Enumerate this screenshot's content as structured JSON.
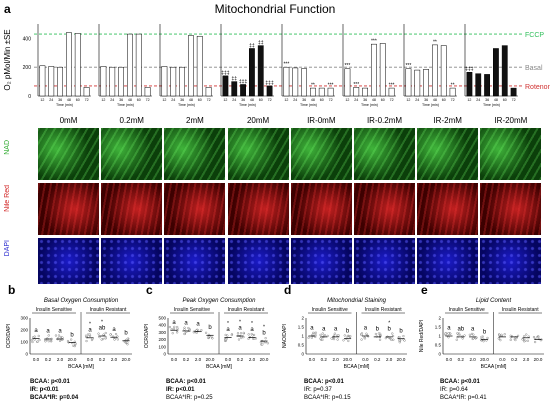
{
  "figure": {
    "panel_a": {
      "letter": "a",
      "title": "Mitochondrial Function"
    },
    "conditions": [
      "0mM",
      "0.2mM",
      "2mM",
      "20mM",
      "IR-0mM",
      "IR-0.2mM",
      "IR-2mM",
      "IR-20mM"
    ],
    "row_labels": [
      "NAD",
      "Nile Red",
      "DAPI"
    ],
    "line_labels": {
      "fccp": "FCCP",
      "basal": "Basal",
      "rotenone": "Rotenone"
    },
    "colors": {
      "fccp": "#2fbf5a",
      "basal": "#888888",
      "rotenone": "#d03030",
      "nad": "#2eaa2e",
      "nile_red": "#d02020",
      "dapi": "#2a2ad0"
    },
    "stats_b": [
      "BCAA: p<0.01",
      "IR: p<0.01",
      "BCAA*IR: p=0.04"
    ],
    "stats_c": [
      "BCAA: p<0.01",
      "IR: p<0.01",
      "BCAA*IR: p=0.25"
    ],
    "stats_d": [
      "BCAA: p<0.01",
      "IR: p=0.37",
      "BCAA*IR: p=0.15"
    ],
    "stats_e": [
      "BCAA: p<0.01",
      "IR: p=0.64",
      "BCAA*IR: p=0.41"
    ]
  },
  "chart_data": [
    {
      "type": "bar",
      "panel": "a",
      "ylabel": "O₂ pMol/Min ±SE",
      "xlabel": "Time (min)",
      "ylim": [
        0,
        500
      ],
      "yticks": [
        0,
        200,
        400
      ],
      "x": [
        12,
        24,
        36,
        48,
        60,
        72
      ],
      "reference_lines": {
        "fccp": 430,
        "basal": 200,
        "rotenone": 70
      },
      "series": [
        {
          "name": "0mM",
          "values": [
            210,
            205,
            200,
            440,
            435,
            60
          ],
          "annotations": [
            "",
            "",
            "",
            "",
            "",
            ""
          ]
        },
        {
          "name": "0.2mM",
          "values": [
            205,
            200,
            200,
            430,
            430,
            60
          ],
          "annotations": [
            "",
            "",
            "",
            "",
            "",
            ""
          ]
        },
        {
          "name": "2mM",
          "values": [
            205,
            200,
            200,
            420,
            415,
            60
          ],
          "annotations": [
            "",
            "",
            "",
            "",
            "",
            ""
          ]
        },
        {
          "name": "20mM",
          "values": [
            140,
            100,
            80,
            330,
            350,
            70
          ],
          "annotations": [
            "‡‡‡",
            "‡‡",
            "‡‡‡",
            "‡‡",
            "‡‡",
            "‡‡‡"
          ]
        },
        {
          "name": "IR-0mM",
          "values": [
            200,
            195,
            190,
            55,
            55,
            55
          ],
          "annotations": [
            "***",
            "",
            "",
            "**",
            "",
            "***"
          ]
        },
        {
          "name": "IR-0.2mM",
          "values": [
            190,
            60,
            55,
            360,
            365,
            55
          ],
          "annotations": [
            "***",
            "***",
            "",
            "***",
            "",
            "***"
          ]
        },
        {
          "name": "IR-2mM",
          "values": [
            190,
            180,
            185,
            355,
            350,
            55
          ],
          "annotations": [
            "***",
            "",
            "",
            "**",
            "",
            "**"
          ]
        },
        {
          "name": "IR-20mM",
          "values": [
            165,
            155,
            150,
            330,
            350,
            55
          ],
          "annotations": [
            "‡‡‡",
            "",
            "",
            "",
            "",
            ""
          ]
        }
      ]
    },
    {
      "type": "scatter",
      "panel": "b",
      "title": "Basal Oxygen Consumption",
      "ylabel": "OCR/DAPI",
      "xlabel": "BCAA [mM]",
      "ylim": [
        0,
        300
      ],
      "yticks": [
        0,
        100,
        200,
        300
      ],
      "groups": [
        "Insulin Sensitive",
        "Insulin Resistant"
      ],
      "categories": [
        "0.0",
        "0.2",
        "2.0",
        "20.0",
        "0.0",
        "0.2",
        "2.0",
        "20.0"
      ],
      "means": [
        130,
        125,
        125,
        95,
        135,
        150,
        140,
        110
      ],
      "letters": [
        "a",
        "a",
        "a",
        "b",
        "a",
        "ab",
        "a",
        "b"
      ],
      "stars": [
        "",
        "",
        "",
        "",
        "*",
        "*",
        "",
        ""
      ]
    },
    {
      "type": "scatter",
      "panel": "c",
      "title": "Peak Oxygen Consumption",
      "ylabel": "OCR/DAPI",
      "xlabel": "BCAA [mM]",
      "ylim": [
        0,
        500
      ],
      "yticks": [
        0,
        100,
        200,
        300,
        400,
        500
      ],
      "groups": [
        "Insulin Sensitive",
        "Insulin Resistant"
      ],
      "categories": [
        "0.0",
        "0.2",
        "2.0",
        "20.0",
        "0.0",
        "0.2",
        "2.0",
        "20.0"
      ],
      "means": [
        330,
        320,
        310,
        260,
        230,
        250,
        230,
        180
      ],
      "letters": [
        "a",
        "a",
        "a",
        "b",
        "a",
        "a",
        "a",
        "b"
      ],
      "stars": [
        "",
        "",
        "",
        "",
        "*",
        "*",
        "*",
        "*"
      ]
    },
    {
      "type": "scatter",
      "panel": "d",
      "title": "Mitochondrial Staining",
      "ylabel": "NAO/DAPI",
      "xlabel": "BCAA [mM]",
      "ylim": [
        0.0,
        2.0
      ],
      "yticks": [
        0.0,
        0.5,
        1.0,
        1.5,
        2.0
      ],
      "groups": [
        "Insulin Sensitive",
        "Insulin Resistant"
      ],
      "categories": [
        "0.0",
        "0.2",
        "2.0",
        "20.0",
        "0.0",
        "0.2",
        "2.0",
        "20.0"
      ],
      "means": [
        1.0,
        0.95,
        0.95,
        0.85,
        1.0,
        0.95,
        0.95,
        0.85
      ],
      "letters": [
        "a",
        "a",
        "a",
        "b",
        "a",
        "b",
        "b",
        "b"
      ],
      "stars": [
        "",
        "",
        "",
        "",
        "",
        "",
        "*",
        ""
      ]
    },
    {
      "type": "scatter",
      "panel": "e",
      "title": "Lipid Content",
      "ylabel": "Nile Red/DAPI",
      "xlabel": "BCAA [mM]",
      "ylim": [
        0.0,
        2.0
      ],
      "yticks": [
        0.0,
        0.5,
        1.0,
        1.5,
        2.0
      ],
      "groups": [
        "Insulin Sensitive",
        "Insulin Resistant"
      ],
      "categories": [
        "0.0",
        "0.2",
        "2.0",
        "20.0",
        "0.0",
        "0.2",
        "2.0",
        "20.0"
      ],
      "means": [
        1.0,
        0.95,
        0.95,
        0.8,
        0.95,
        0.95,
        0.9,
        0.8
      ],
      "letters": [
        "a",
        "ab",
        "a",
        "b",
        "",
        "",
        "",
        ""
      ],
      "stars": [
        "",
        "",
        "",
        "",
        "",
        "",
        "",
        ""
      ]
    }
  ]
}
